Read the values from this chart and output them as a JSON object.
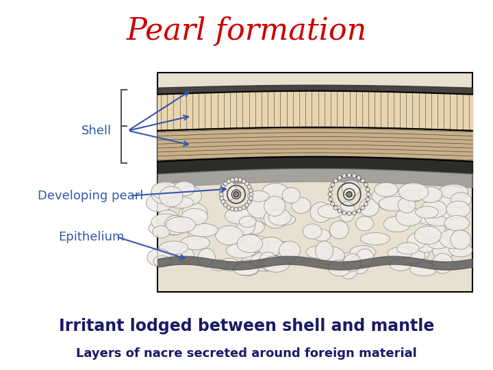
{
  "title": "Pearl formation",
  "title_color": "#cc0000",
  "title_fontsize": 32,
  "title_fontstyle": "italic",
  "bg_top_color": "#aaf0e0",
  "bg_main_color": "#ffffff",
  "bg_bottom_color": "#b0c4de",
  "diagram_bg_color": "#e8e0d0",
  "label_shell": "Shell",
  "label_developing": "Developing pearl",
  "label_epithelium": "Epithelium",
  "label_irritant": "Irritant lodged between shell and mantle",
  "label_layers": "Layers of nacre secreted around foreign material",
  "label_color": "#3355aa",
  "label_fontsize": 13,
  "irritant_fontsize": 17,
  "arrow_color": "#3355aa"
}
